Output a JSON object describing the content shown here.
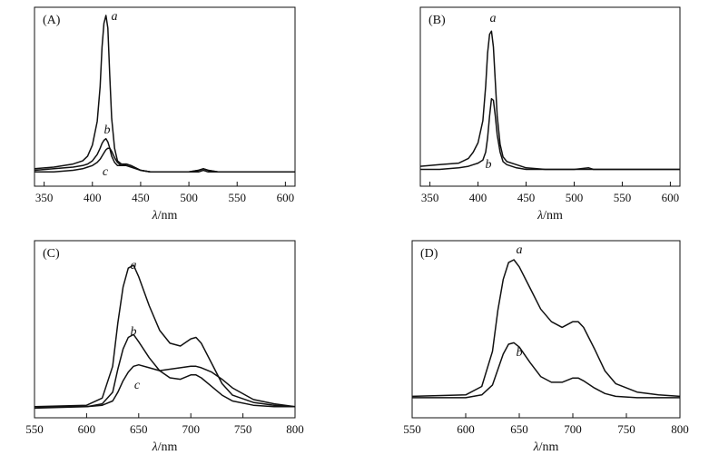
{
  "chart_data": [
    {
      "type": "line",
      "panel_label": "(A)",
      "xlabel_symbol": "λ",
      "xlabel_unit": "/nm",
      "xlim": [
        340,
        610
      ],
      "ylim": [
        0,
        1
      ],
      "xticks": [
        350,
        400,
        450,
        500,
        550,
        600
      ],
      "yticks_shown": false,
      "series": [
        {
          "name": "a",
          "x": [
            340,
            360,
            380,
            390,
            395,
            400,
            405,
            408,
            410,
            412,
            414,
            416,
            418,
            420,
            423,
            426,
            430,
            435,
            440,
            450,
            460,
            480,
            500,
            510,
            515,
            520,
            530,
            550,
            570,
            580,
            590,
            610
          ],
          "y": [
            0.03,
            0.04,
            0.06,
            0.08,
            0.11,
            0.18,
            0.33,
            0.55,
            0.8,
            0.95,
            1.0,
            0.92,
            0.62,
            0.35,
            0.16,
            0.08,
            0.06,
            0.06,
            0.05,
            0.02,
            0.01,
            0.01,
            0.01,
            0.02,
            0.03,
            0.02,
            0.01,
            0.01,
            0.01,
            0.01,
            0.01,
            0.01
          ]
        },
        {
          "name": "b",
          "x": [
            340,
            360,
            380,
            390,
            395,
            400,
            405,
            408,
            410,
            412,
            414,
            416,
            418,
            420,
            423,
            426,
            430,
            435,
            440,
            450,
            460,
            480,
            500,
            510,
            515,
            520,
            530,
            550,
            570,
            580,
            590,
            610
          ],
          "y": [
            0.02,
            0.03,
            0.04,
            0.05,
            0.06,
            0.08,
            0.12,
            0.16,
            0.19,
            0.21,
            0.22,
            0.2,
            0.16,
            0.11,
            0.07,
            0.05,
            0.05,
            0.06,
            0.05,
            0.02,
            0.01,
            0.01,
            0.01,
            0.02,
            0.03,
            0.02,
            0.01,
            0.01,
            0.01,
            0.01,
            0.01,
            0.01
          ]
        },
        {
          "name": "c",
          "x": [
            340,
            360,
            380,
            390,
            395,
            400,
            405,
            408,
            410,
            412,
            414,
            416,
            418,
            420,
            423,
            426,
            430,
            435,
            440,
            450,
            460,
            480,
            500,
            510,
            515,
            520,
            530,
            550,
            570,
            580,
            590,
            610
          ],
          "y": [
            0.01,
            0.01,
            0.02,
            0.03,
            0.04,
            0.05,
            0.07,
            0.09,
            0.11,
            0.13,
            0.15,
            0.16,
            0.16,
            0.14,
            0.1,
            0.07,
            0.05,
            0.05,
            0.04,
            0.02,
            0.01,
            0.01,
            0.01,
            0.01,
            0.02,
            0.01,
            0.01,
            0.01,
            0.01,
            0.01,
            0.01,
            0.01
          ]
        }
      ]
    },
    {
      "type": "line",
      "panel_label": "(B)",
      "xlabel_symbol": "λ",
      "xlabel_unit": "/nm",
      "xlim": [
        340,
        610
      ],
      "ylim": [
        0,
        1
      ],
      "xticks": [
        350,
        400,
        450,
        500,
        550,
        600
      ],
      "yticks_shown": false,
      "series": [
        {
          "name": "a",
          "x": [
            340,
            360,
            380,
            390,
            395,
            400,
            405,
            408,
            410,
            412,
            414,
            416,
            418,
            420,
            423,
            426,
            430,
            440,
            450,
            470,
            500,
            515,
            520,
            530,
            550,
            570,
            580,
            590,
            610
          ],
          "y": [
            0.04,
            0.05,
            0.06,
            0.09,
            0.13,
            0.19,
            0.33,
            0.55,
            0.76,
            0.88,
            0.9,
            0.8,
            0.58,
            0.36,
            0.18,
            0.1,
            0.07,
            0.05,
            0.03,
            0.02,
            0.02,
            0.03,
            0.02,
            0.02,
            0.02,
            0.02,
            0.02,
            0.02,
            0.02
          ]
        },
        {
          "name": "b",
          "x": [
            340,
            360,
            380,
            390,
            395,
            400,
            405,
            408,
            410,
            412,
            414,
            416,
            418,
            420,
            423,
            426,
            430,
            440,
            450,
            470,
            500,
            515,
            520,
            530,
            550,
            570,
            580,
            590,
            610
          ],
          "y": [
            0.02,
            0.02,
            0.03,
            0.04,
            0.05,
            0.06,
            0.08,
            0.13,
            0.22,
            0.36,
            0.47,
            0.46,
            0.36,
            0.24,
            0.13,
            0.07,
            0.05,
            0.03,
            0.02,
            0.02,
            0.02,
            0.02,
            0.02,
            0.02,
            0.02,
            0.02,
            0.02,
            0.02,
            0.02
          ]
        }
      ]
    },
    {
      "type": "line",
      "panel_label": "(C)",
      "xlabel_symbol": "λ",
      "xlabel_unit": "/nm",
      "xlim": [
        550,
        800
      ],
      "ylim": [
        0,
        1
      ],
      "xticks": [
        550,
        600,
        650,
        700,
        750,
        800
      ],
      "yticks_shown": false,
      "series": [
        {
          "name": "a",
          "x": [
            550,
            600,
            615,
            625,
            630,
            635,
            640,
            645,
            650,
            660,
            670,
            680,
            690,
            700,
            705,
            710,
            720,
            730,
            740,
            760,
            780,
            800
          ],
          "y": [
            0.02,
            0.03,
            0.08,
            0.3,
            0.6,
            0.85,
            0.98,
            1.0,
            0.92,
            0.72,
            0.55,
            0.46,
            0.44,
            0.49,
            0.5,
            0.46,
            0.32,
            0.18,
            0.1,
            0.05,
            0.03,
            0.02
          ]
        },
        {
          "name": "b",
          "x": [
            550,
            600,
            615,
            625,
            630,
            635,
            640,
            645,
            650,
            660,
            670,
            680,
            690,
            700,
            705,
            710,
            720,
            730,
            740,
            760,
            780,
            800
          ],
          "y": [
            0.02,
            0.02,
            0.04,
            0.12,
            0.28,
            0.42,
            0.5,
            0.52,
            0.47,
            0.36,
            0.27,
            0.22,
            0.21,
            0.24,
            0.24,
            0.22,
            0.16,
            0.1,
            0.06,
            0.03,
            0.02,
            0.02
          ]
        },
        {
          "name": "c",
          "x": [
            550,
            600,
            615,
            625,
            630,
            635,
            640,
            645,
            650,
            660,
            670,
            680,
            690,
            700,
            705,
            710,
            720,
            730,
            740,
            760,
            780,
            800
          ],
          "y": [
            0.01,
            0.02,
            0.03,
            0.06,
            0.12,
            0.2,
            0.26,
            0.3,
            0.31,
            0.29,
            0.27,
            0.28,
            0.29,
            0.3,
            0.3,
            0.29,
            0.26,
            0.21,
            0.15,
            0.07,
            0.04,
            0.02
          ]
        }
      ]
    },
    {
      "type": "line",
      "panel_label": "(D)",
      "xlabel_symbol": "λ",
      "xlabel_unit": "/nm",
      "xlim": [
        550,
        800
      ],
      "ylim": [
        0,
        1
      ],
      "xticks": [
        550,
        600,
        650,
        700,
        750,
        800
      ],
      "yticks_shown": false,
      "series": [
        {
          "name": "a",
          "x": [
            550,
            600,
            615,
            625,
            630,
            635,
            640,
            645,
            650,
            660,
            670,
            680,
            690,
            700,
            705,
            710,
            720,
            730,
            740,
            760,
            780,
            800
          ],
          "y": [
            0.03,
            0.04,
            0.1,
            0.35,
            0.64,
            0.86,
            0.98,
            1.0,
            0.95,
            0.8,
            0.65,
            0.56,
            0.52,
            0.56,
            0.56,
            0.52,
            0.37,
            0.21,
            0.12,
            0.06,
            0.04,
            0.03
          ]
        },
        {
          "name": "b",
          "x": [
            550,
            600,
            615,
            625,
            630,
            635,
            640,
            645,
            650,
            660,
            670,
            680,
            690,
            700,
            705,
            710,
            720,
            730,
            740,
            760,
            780,
            800
          ],
          "y": [
            0.02,
            0.02,
            0.04,
            0.11,
            0.22,
            0.33,
            0.4,
            0.41,
            0.38,
            0.27,
            0.17,
            0.13,
            0.13,
            0.16,
            0.16,
            0.14,
            0.09,
            0.05,
            0.03,
            0.02,
            0.02,
            0.02
          ]
        }
      ]
    }
  ]
}
